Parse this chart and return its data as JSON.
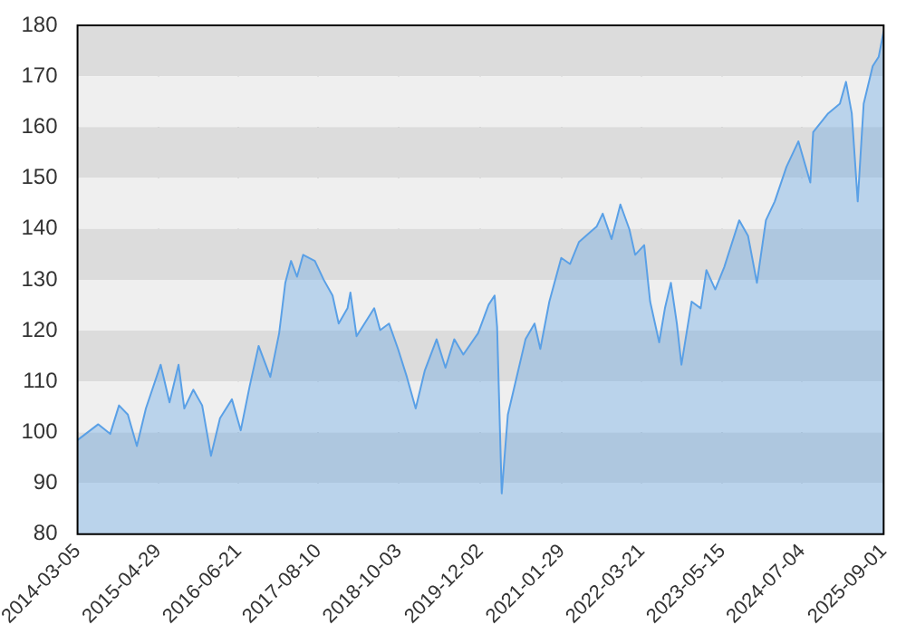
{
  "chart_data": {
    "type": "area",
    "xlim": [
      "2014-03-05",
      "2025-09-01"
    ],
    "xticks": [
      "2014-03-05",
      "2015-04-29",
      "2016-06-21",
      "2017-08-10",
      "2018-10-03",
      "2019-12-02",
      "2021-01-29",
      "2022-03-21",
      "2023-05-15",
      "2024-07-04",
      "2025-09-01"
    ],
    "ylim": [
      80,
      180
    ],
    "yticks": [
      80,
      90,
      100,
      110,
      120,
      130,
      140,
      150,
      160,
      170,
      180
    ],
    "grid": true,
    "legend": false,
    "series": [
      {
        "color": "#5aa0e6",
        "x": [
          "2014-03-05",
          "2014-06-21",
          "2014-08-22",
          "2014-10-07",
          "2014-11-22",
          "2015-01-08",
          "2015-02-24",
          "2015-05-12",
          "2015-06-27",
          "2015-08-13",
          "2015-09-12",
          "2015-10-29",
          "2015-12-14",
          "2016-01-29",
          "2016-03-16",
          "2016-05-17",
          "2016-07-02",
          "2016-08-17",
          "2016-10-03",
          "2016-12-03",
          "2017-01-18",
          "2017-02-19",
          "2017-03-21",
          "2017-04-21",
          "2017-05-23",
          "2017-07-23",
          "2017-09-07",
          "2017-10-23",
          "2017-11-24",
          "2018-01-09",
          "2018-01-24",
          "2018-02-25",
          "2018-05-28",
          "2018-06-28",
          "2018-08-13",
          "2018-09-29",
          "2018-11-14",
          "2018-12-30",
          "2019-02-15",
          "2019-04-18",
          "2019-06-03",
          "2019-07-19",
          "2019-09-04",
          "2019-11-20",
          "2020-01-14",
          "2020-02-14",
          "2020-02-27",
          "2020-03-22",
          "2020-04-23",
          "2020-06-08",
          "2020-07-24",
          "2020-09-09",
          "2020-10-09",
          "2020-11-25",
          "2021-01-26",
          "2021-03-13",
          "2021-04-28",
          "2021-07-30",
          "2021-08-30",
          "2021-10-15",
          "2021-11-30",
          "2022-01-16",
          "2022-02-15",
          "2022-04-03",
          "2022-05-04",
          "2022-06-20",
          "2022-07-20",
          "2022-08-20",
          "2022-09-20",
          "2022-10-14",
          "2022-12-06",
          "2023-01-22",
          "2023-02-21",
          "2023-04-08",
          "2023-05-25",
          "2023-08-11",
          "2023-09-26",
          "2023-11-11",
          "2023-12-28",
          "2024-02-12",
          "2024-04-13",
          "2024-06-14",
          "2024-08-15",
          "2024-08-30",
          "2024-11-16",
          "2025-01-16",
          "2025-02-17",
          "2025-03-19",
          "2025-04-19",
          "2025-05-20",
          "2025-07-06",
          "2025-08-06",
          "2025-09-01"
        ],
        "values": [
          98.5,
          101.6,
          99.7,
          105.3,
          103.5,
          97.3,
          104.7,
          113.3,
          105.9,
          113.3,
          104.7,
          108.4,
          105.3,
          95.4,
          102.8,
          106.5,
          100.4,
          109,
          117,
          110.9,
          119.5,
          129.4,
          133.7,
          130.6,
          134.9,
          133.7,
          130,
          126.9,
          121.4,
          124.4,
          127.5,
          118.9,
          124.4,
          120.1,
          121.4,
          116.4,
          110.9,
          104.7,
          112.1,
          118.3,
          112.7,
          118.3,
          115.3,
          119.5,
          125.1,
          126.9,
          120.7,
          88,
          103.5,
          110.9,
          118.3,
          121.4,
          116.4,
          125.7,
          134.3,
          133.1,
          137.4,
          140.5,
          143,
          138,
          144.8,
          139.9,
          134.9,
          136.8,
          125.7,
          117.7,
          124.4,
          129.4,
          121.4,
          113.3,
          125.7,
          124.4,
          131.9,
          128.1,
          132.5,
          141.7,
          138.6,
          129.4,
          141.7,
          145.4,
          152.2,
          157.2,
          149.1,
          159,
          162.7,
          164.6,
          168.9,
          162.7,
          145.4,
          164.6,
          172,
          173.8,
          178.8
        ]
      }
    ]
  }
}
